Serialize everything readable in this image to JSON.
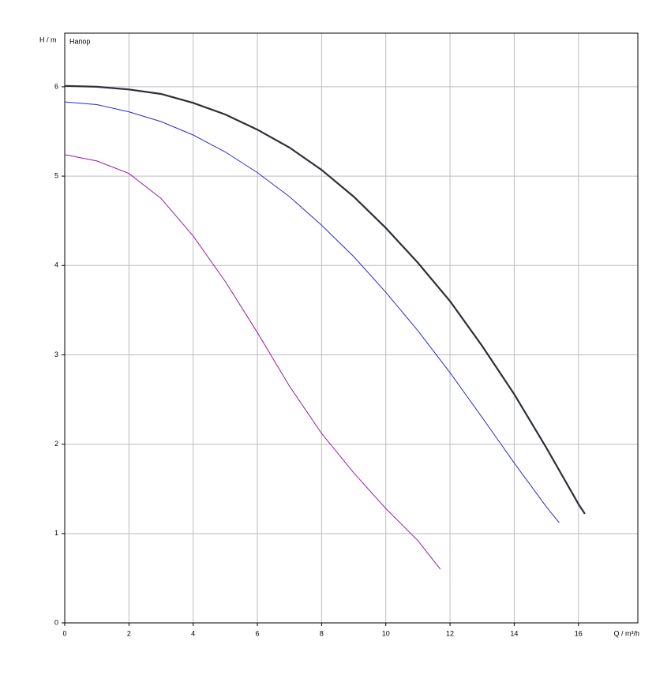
{
  "chart_data": {
    "type": "line",
    "y_label": "H / m",
    "x_label": "Q / m³/h",
    "annotation": "Напор",
    "xlim": [
      0,
      17.85
    ],
    "xticks": [
      0,
      2,
      4,
      6,
      8,
      10,
      12,
      14,
      16
    ],
    "ylim": [
      0,
      6.6
    ],
    "yticks": [
      0,
      1,
      2,
      3,
      4,
      5,
      6
    ],
    "grid": true,
    "series": [
      {
        "color": "#2b2f38",
        "x": [
          0,
          1,
          2,
          3,
          4,
          5,
          6,
          7,
          8,
          9,
          10,
          11,
          12,
          13,
          14,
          15,
          16,
          16.2
        ],
        "values": [
          6.01,
          6.0,
          5.97,
          5.92,
          5.82,
          5.69,
          5.52,
          5.32,
          5.07,
          4.77,
          4.42,
          4.03,
          3.6,
          3.1,
          2.56,
          1.96,
          1.33,
          1.22
        ]
      },
      {
        "color": "#2a2ad0",
        "x": [
          0,
          1,
          2,
          3,
          4,
          5,
          6,
          7,
          8,
          9,
          10,
          11,
          12,
          13,
          14,
          15,
          15.4
        ],
        "values": [
          5.83,
          5.8,
          5.72,
          5.61,
          5.46,
          5.27,
          5.04,
          4.77,
          4.45,
          4.1,
          3.7,
          3.27,
          2.8,
          2.3,
          1.79,
          1.3,
          1.12
        ]
      },
      {
        "color": "#9a1aa8",
        "x": [
          0,
          1,
          2,
          3,
          4,
          5,
          6,
          7,
          8,
          9,
          10,
          11,
          11.7
        ],
        "values": [
          5.24,
          5.17,
          5.03,
          4.75,
          4.33,
          3.82,
          3.25,
          2.65,
          2.12,
          1.68,
          1.28,
          0.92,
          0.6
        ]
      }
    ]
  }
}
